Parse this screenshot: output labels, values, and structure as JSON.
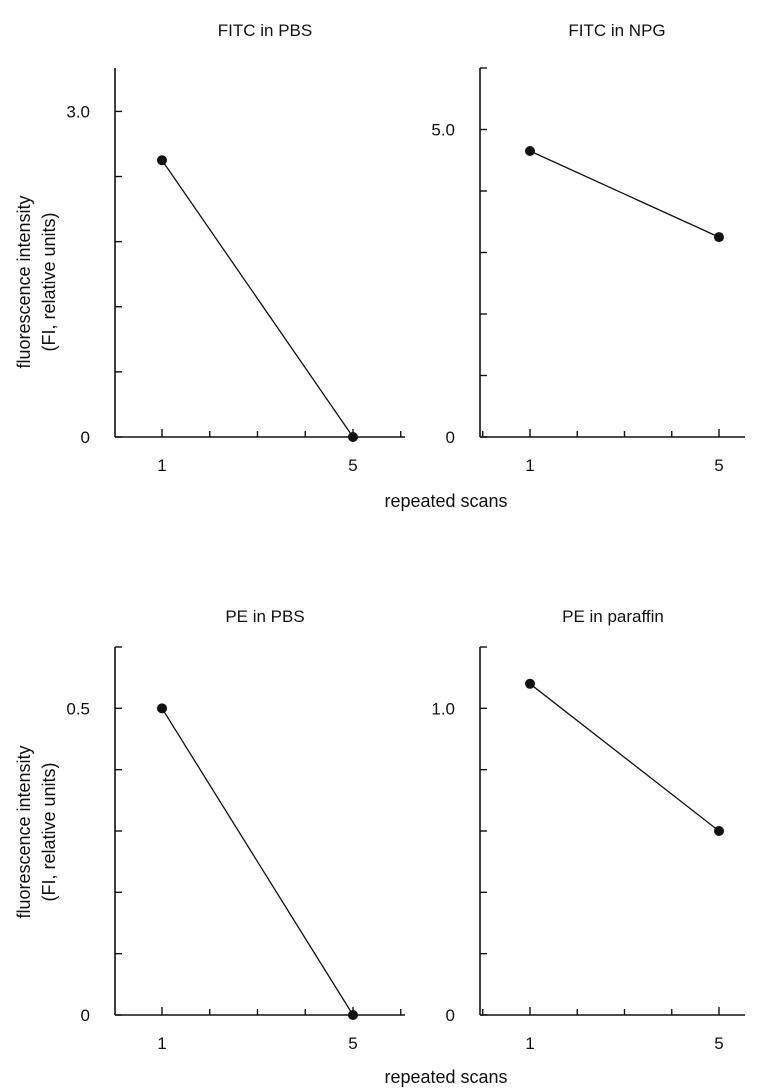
{
  "figure": {
    "ylabel_line1": "fluorescence intensity",
    "ylabel_line2": "(FI, relative units)",
    "xlabel": "repeated scans"
  },
  "chart_data": [
    {
      "type": "line",
      "title": "FITC in PBS",
      "x": [
        1,
        5
      ],
      "y": [
        2.55,
        0
      ],
      "xticks": [
        "1",
        "5"
      ],
      "yticks": [
        {
          "value": 0,
          "label": "0"
        },
        {
          "value": 3.0,
          "label": "3.0"
        }
      ],
      "ylim": [
        0,
        3.4
      ],
      "grid": false
    },
    {
      "type": "line",
      "title": "FITC in NPG",
      "x": [
        1,
        5
      ],
      "y": [
        4.65,
        3.25
      ],
      "xticks": [
        "1",
        "5"
      ],
      "yticks": [
        {
          "value": 0,
          "label": "0"
        },
        {
          "value": 5.0,
          "label": "5.0"
        }
      ],
      "ylim": [
        0,
        6.0
      ],
      "grid": false
    },
    {
      "type": "line",
      "title": "PE in PBS",
      "x": [
        1,
        5
      ],
      "y": [
        0.5,
        0
      ],
      "xticks": [
        "1",
        "5"
      ],
      "yticks": [
        {
          "value": 0,
          "label": "0"
        },
        {
          "value": 0.5,
          "label": "0.5"
        }
      ],
      "ylim": [
        0,
        0.6
      ],
      "grid": false
    },
    {
      "type": "line",
      "title": "PE in paraffin",
      "x": [
        1,
        5
      ],
      "y": [
        1.08,
        0.6
      ],
      "xticks": [
        "1",
        "5"
      ],
      "yticks": [
        {
          "value": 0,
          "label": "0"
        },
        {
          "value": 1.0,
          "label": "1.0"
        }
      ],
      "ylim": [
        0,
        1.2
      ],
      "grid": false
    }
  ]
}
